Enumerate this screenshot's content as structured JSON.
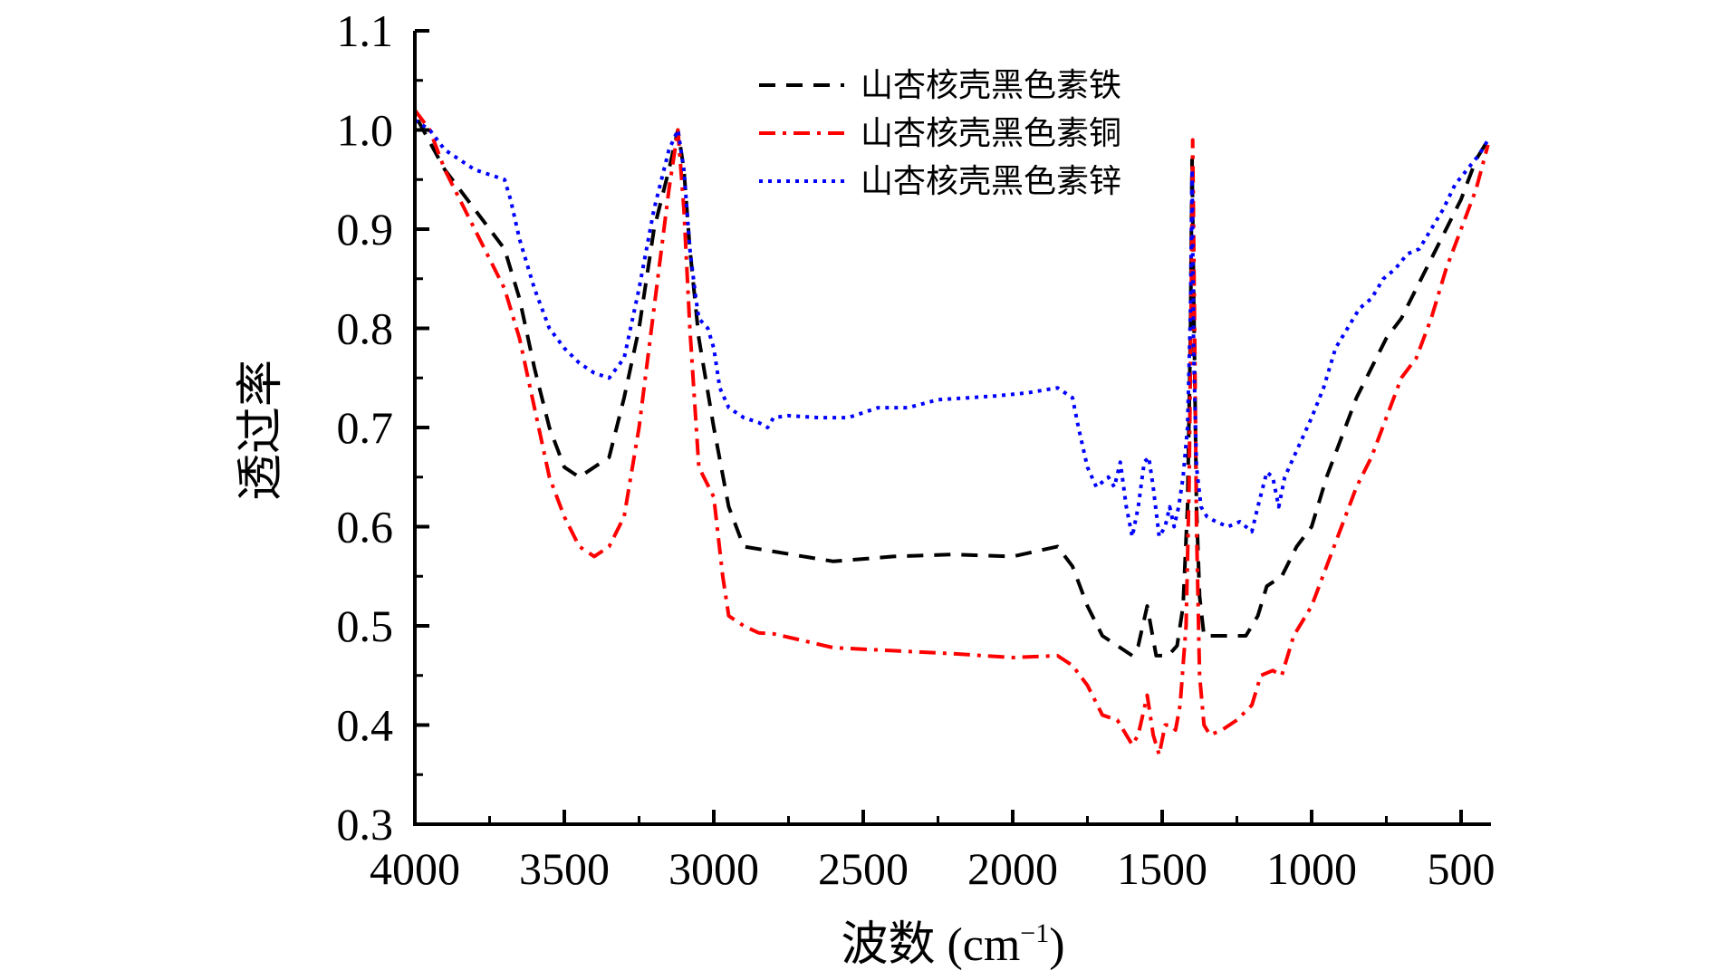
{
  "chart_data": {
    "type": "line",
    "title": "",
    "xlabel": "波数 (cm⁻¹)",
    "ylabel": "透过率",
    "xlim": [
      4000,
      400
    ],
    "ylim": [
      0.3,
      1.1
    ],
    "xticks": [
      4000,
      3500,
      3000,
      2500,
      2000,
      1500,
      1000,
      500
    ],
    "xtick_labels": [
      "4000",
      "3500",
      "3000",
      "2500",
      "2000",
      "1500",
      "1000",
      "500"
    ],
    "yticks": [
      0.3,
      0.4,
      0.5,
      0.6,
      0.7,
      0.8,
      0.9,
      1.0,
      1.1
    ],
    "ytick_labels": [
      "0.3",
      "0.4",
      "0.5",
      "0.6",
      "0.7",
      "0.8",
      "0.9",
      "1.0",
      "1.1"
    ],
    "legend_position": "top-center",
    "series": [
      {
        "name": "山杏核壳黑色素铁",
        "color": "#000000",
        "dash": "dash",
        "points": [
          [
            3990,
            1.01
          ],
          [
            3900,
            0.96
          ],
          [
            3800,
            0.92
          ],
          [
            3700,
            0.88
          ],
          [
            3650,
            0.83
          ],
          [
            3600,
            0.76
          ],
          [
            3550,
            0.7
          ],
          [
            3500,
            0.66
          ],
          [
            3450,
            0.65
          ],
          [
            3350,
            0.67
          ],
          [
            3300,
            0.73
          ],
          [
            3250,
            0.8
          ],
          [
            3200,
            0.9
          ],
          [
            3150,
            0.96
          ],
          [
            3120,
            1.0
          ],
          [
            3100,
            0.96
          ],
          [
            3080,
            0.88
          ],
          [
            3050,
            0.79
          ],
          [
            3000,
            0.7
          ],
          [
            2950,
            0.62
          ],
          [
            2900,
            0.58
          ],
          [
            2800,
            0.575
          ],
          [
            2600,
            0.565
          ],
          [
            2400,
            0.57
          ],
          [
            2200,
            0.572
          ],
          [
            2000,
            0.57
          ],
          [
            1850,
            0.58
          ],
          [
            1800,
            0.56
          ],
          [
            1750,
            0.52
          ],
          [
            1700,
            0.49
          ],
          [
            1650,
            0.48
          ],
          [
            1600,
            0.47
          ],
          [
            1580,
            0.48
          ],
          [
            1550,
            0.52
          ],
          [
            1520,
            0.47
          ],
          [
            1480,
            0.47
          ],
          [
            1450,
            0.48
          ],
          [
            1430,
            0.52
          ],
          [
            1415,
            0.62
          ],
          [
            1405,
            0.8
          ],
          [
            1400,
            0.97
          ],
          [
            1395,
            0.84
          ],
          [
            1385,
            0.62
          ],
          [
            1375,
            0.53
          ],
          [
            1360,
            0.49
          ],
          [
            1300,
            0.49
          ],
          [
            1220,
            0.49
          ],
          [
            1180,
            0.51
          ],
          [
            1150,
            0.54
          ],
          [
            1100,
            0.55
          ],
          [
            1050,
            0.58
          ],
          [
            1000,
            0.6
          ],
          [
            950,
            0.65
          ],
          [
            900,
            0.69
          ],
          [
            850,
            0.73
          ],
          [
            800,
            0.76
          ],
          [
            750,
            0.79
          ],
          [
            700,
            0.81
          ],
          [
            650,
            0.84
          ],
          [
            600,
            0.87
          ],
          [
            550,
            0.9
          ],
          [
            500,
            0.93
          ],
          [
            450,
            0.97
          ],
          [
            410,
            0.99
          ]
        ]
      },
      {
        "name": "山杏核壳黑色素铜",
        "color": "#ff0000",
        "dash": "dash-dot",
        "points": [
          [
            4000,
            1.02
          ],
          [
            3950,
            1.0
          ],
          [
            3900,
            0.96
          ],
          [
            3850,
            0.93
          ],
          [
            3800,
            0.9
          ],
          [
            3750,
            0.87
          ],
          [
            3700,
            0.84
          ],
          [
            3650,
            0.79
          ],
          [
            3600,
            0.72
          ],
          [
            3550,
            0.65
          ],
          [
            3500,
            0.61
          ],
          [
            3450,
            0.58
          ],
          [
            3400,
            0.57
          ],
          [
            3350,
            0.58
          ],
          [
            3300,
            0.61
          ],
          [
            3250,
            0.7
          ],
          [
            3200,
            0.82
          ],
          [
            3150,
            0.94
          ],
          [
            3120,
            1.0
          ],
          [
            3100,
            0.92
          ],
          [
            3080,
            0.8
          ],
          [
            3050,
            0.66
          ],
          [
            3000,
            0.63
          ],
          [
            2970,
            0.55
          ],
          [
            2950,
            0.51
          ],
          [
            2900,
            0.5
          ],
          [
            2850,
            0.493
          ],
          [
            2800,
            0.492
          ],
          [
            2700,
            0.485
          ],
          [
            2600,
            0.478
          ],
          [
            2400,
            0.475
          ],
          [
            2200,
            0.472
          ],
          [
            2000,
            0.468
          ],
          [
            1850,
            0.47
          ],
          [
            1800,
            0.46
          ],
          [
            1750,
            0.44
          ],
          [
            1700,
            0.41
          ],
          [
            1650,
            0.405
          ],
          [
            1600,
            0.38
          ],
          [
            1580,
            0.39
          ],
          [
            1550,
            0.43
          ],
          [
            1530,
            0.39
          ],
          [
            1510,
            0.37
          ],
          [
            1490,
            0.4
          ],
          [
            1470,
            0.4
          ],
          [
            1455,
            0.395
          ],
          [
            1440,
            0.42
          ],
          [
            1420,
            0.5
          ],
          [
            1410,
            0.64
          ],
          [
            1402,
            0.85
          ],
          [
            1398,
            0.99
          ],
          [
            1392,
            0.82
          ],
          [
            1385,
            0.6
          ],
          [
            1375,
            0.45
          ],
          [
            1360,
            0.4
          ],
          [
            1340,
            0.39
          ],
          [
            1300,
            0.395
          ],
          [
            1250,
            0.405
          ],
          [
            1200,
            0.42
          ],
          [
            1170,
            0.45
          ],
          [
            1130,
            0.455
          ],
          [
            1100,
            0.45
          ],
          [
            1060,
            0.49
          ],
          [
            1000,
            0.52
          ],
          [
            950,
            0.56
          ],
          [
            900,
            0.6
          ],
          [
            850,
            0.64
          ],
          [
            800,
            0.67
          ],
          [
            750,
            0.71
          ],
          [
            700,
            0.75
          ],
          [
            650,
            0.77
          ],
          [
            600,
            0.81
          ],
          [
            550,
            0.86
          ],
          [
            500,
            0.9
          ],
          [
            450,
            0.94
          ],
          [
            410,
            0.985
          ]
        ]
      },
      {
        "name": "山杏核壳黑色素锌",
        "color": "#0000ff",
        "dash": "dot",
        "points": [
          [
            4000,
            1.01
          ],
          [
            3950,
            1.0
          ],
          [
            3900,
            0.98
          ],
          [
            3850,
            0.97
          ],
          [
            3800,
            0.96
          ],
          [
            3750,
            0.955
          ],
          [
            3700,
            0.95
          ],
          [
            3680,
            0.93
          ],
          [
            3650,
            0.89
          ],
          [
            3600,
            0.84
          ],
          [
            3550,
            0.8
          ],
          [
            3500,
            0.78
          ],
          [
            3450,
            0.765
          ],
          [
            3400,
            0.755
          ],
          [
            3350,
            0.75
          ],
          [
            3300,
            0.77
          ],
          [
            3250,
            0.84
          ],
          [
            3200,
            0.92
          ],
          [
            3150,
            0.98
          ],
          [
            3120,
            1.0
          ],
          [
            3100,
            0.96
          ],
          [
            3080,
            0.88
          ],
          [
            3060,
            0.83
          ],
          [
            3050,
            0.81
          ],
          [
            3020,
            0.8
          ],
          [
            3000,
            0.78
          ],
          [
            2980,
            0.74
          ],
          [
            2950,
            0.72
          ],
          [
            2900,
            0.71
          ],
          [
            2850,
            0.705
          ],
          [
            2820,
            0.7
          ],
          [
            2800,
            0.71
          ],
          [
            2750,
            0.712
          ],
          [
            2650,
            0.71
          ],
          [
            2550,
            0.71
          ],
          [
            2450,
            0.72
          ],
          [
            2350,
            0.72
          ],
          [
            2250,
            0.728
          ],
          [
            2150,
            0.73
          ],
          [
            2050,
            0.732
          ],
          [
            1950,
            0.735
          ],
          [
            1850,
            0.74
          ],
          [
            1800,
            0.73
          ],
          [
            1780,
            0.7
          ],
          [
            1750,
            0.66
          ],
          [
            1720,
            0.64
          ],
          [
            1700,
            0.645
          ],
          [
            1680,
            0.65
          ],
          [
            1660,
            0.64
          ],
          [
            1640,
            0.665
          ],
          [
            1620,
            0.62
          ],
          [
            1600,
            0.59
          ],
          [
            1580,
            0.62
          ],
          [
            1560,
            0.665
          ],
          [
            1545,
            0.67
          ],
          [
            1530,
            0.64
          ],
          [
            1510,
            0.59
          ],
          [
            1490,
            0.6
          ],
          [
            1475,
            0.62
          ],
          [
            1460,
            0.6
          ],
          [
            1445,
            0.62
          ],
          [
            1430,
            0.65
          ],
          [
            1415,
            0.7
          ],
          [
            1405,
            0.82
          ],
          [
            1400,
            0.96
          ],
          [
            1395,
            0.78
          ],
          [
            1385,
            0.66
          ],
          [
            1370,
            0.62
          ],
          [
            1350,
            0.61
          ],
          [
            1320,
            0.605
          ],
          [
            1280,
            0.6
          ],
          [
            1240,
            0.605
          ],
          [
            1200,
            0.595
          ],
          [
            1180,
            0.62
          ],
          [
            1150,
            0.655
          ],
          [
            1130,
            0.65
          ],
          [
            1110,
            0.62
          ],
          [
            1090,
            0.65
          ],
          [
            1060,
            0.67
          ],
          [
            1030,
            0.69
          ],
          [
            1000,
            0.71
          ],
          [
            960,
            0.74
          ],
          [
            920,
            0.78
          ],
          [
            880,
            0.8
          ],
          [
            840,
            0.82
          ],
          [
            800,
            0.83
          ],
          [
            760,
            0.85
          ],
          [
            720,
            0.86
          ],
          [
            680,
            0.875
          ],
          [
            640,
            0.88
          ],
          [
            600,
            0.9
          ],
          [
            560,
            0.92
          ],
          [
            520,
            0.945
          ],
          [
            480,
            0.96
          ],
          [
            440,
            0.975
          ],
          [
            410,
            0.99
          ]
        ]
      }
    ]
  }
}
